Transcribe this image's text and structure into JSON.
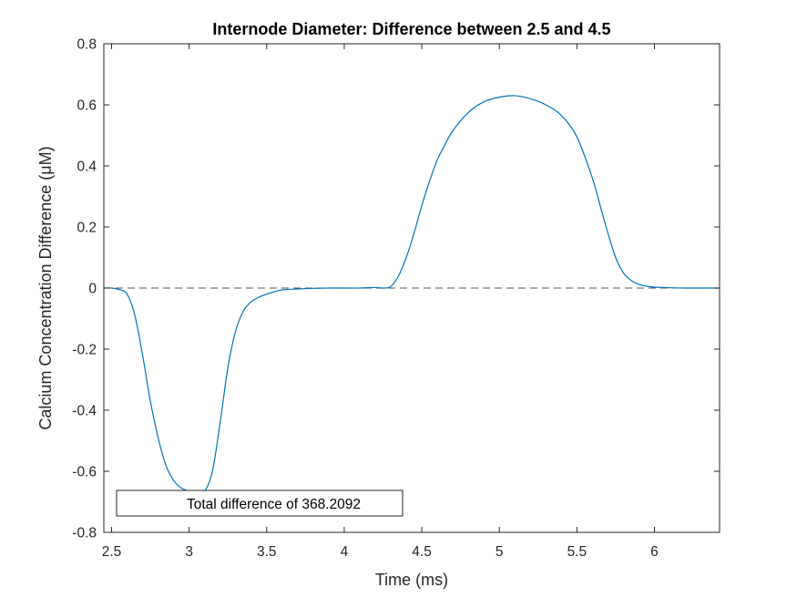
{
  "chart_data": {
    "type": "line",
    "title": "Internode Diameter: Difference between 2.5 and 4.5",
    "xlabel": "Time (ms)",
    "ylabel": "Calcium Concentration Difference (μM)",
    "xlim": [
      2.45,
      6.42
    ],
    "ylim": [
      -0.8,
      0.8
    ],
    "xticks": [
      2.5,
      3,
      3.5,
      4,
      4.5,
      5,
      5.5,
      6
    ],
    "xtick_labels": [
      "2.5",
      "3",
      "3.5",
      "4",
      "4.5",
      "5",
      "5.5",
      "6"
    ],
    "yticks": [
      -0.8,
      -0.6,
      -0.4,
      -0.2,
      0,
      0.2,
      0.4,
      0.6,
      0.8
    ],
    "ytick_labels": [
      "-0.8",
      "-0.6",
      "-0.4",
      "-0.2",
      "0",
      "0.2",
      "0.4",
      "0.6",
      "0.8"
    ],
    "grid": false,
    "legend": {
      "text": "Total difference of 368.2092",
      "placement": "bottom-left"
    },
    "reference_line": {
      "y": 0,
      "style": "dashed",
      "color": "#555555"
    },
    "series": [
      {
        "color": "#0072BD",
        "x": [
          2.45,
          2.5,
          2.55,
          2.6,
          2.65,
          2.7,
          2.75,
          2.8,
          2.85,
          2.9,
          2.95,
          3.0,
          3.05,
          3.1,
          3.15,
          3.2,
          3.25,
          3.3,
          3.35,
          3.4,
          3.45,
          3.5,
          3.55,
          3.6,
          3.7,
          3.8,
          3.9,
          4.0,
          4.1,
          4.2,
          4.25,
          4.3,
          4.35,
          4.4,
          4.45,
          4.5,
          4.55,
          4.6,
          4.65,
          4.7,
          4.8,
          4.9,
          5.0,
          5.1,
          5.2,
          5.3,
          5.4,
          5.5,
          5.6,
          5.65,
          5.7,
          5.75,
          5.8,
          5.85,
          5.9,
          5.95,
          6.0,
          6.05,
          6.1,
          6.2,
          6.3,
          6.42
        ],
        "y": [
          0.0,
          0.0,
          -0.005,
          -0.02,
          -0.09,
          -0.22,
          -0.37,
          -0.49,
          -0.58,
          -0.63,
          -0.655,
          -0.665,
          -0.67,
          -0.665,
          -0.6,
          -0.44,
          -0.26,
          -0.14,
          -0.075,
          -0.045,
          -0.03,
          -0.02,
          -0.012,
          -0.006,
          -0.003,
          -0.001,
          0.0,
          0.0,
          0.0,
          0.002,
          0.0,
          0.005,
          0.04,
          0.1,
          0.18,
          0.27,
          0.35,
          0.42,
          0.47,
          0.515,
          0.575,
          0.61,
          0.625,
          0.63,
          0.62,
          0.6,
          0.565,
          0.495,
          0.36,
          0.27,
          0.18,
          0.1,
          0.05,
          0.025,
          0.012,
          0.006,
          0.003,
          0.002,
          0.001,
          0.0,
          0.0,
          0.0
        ]
      }
    ]
  }
}
